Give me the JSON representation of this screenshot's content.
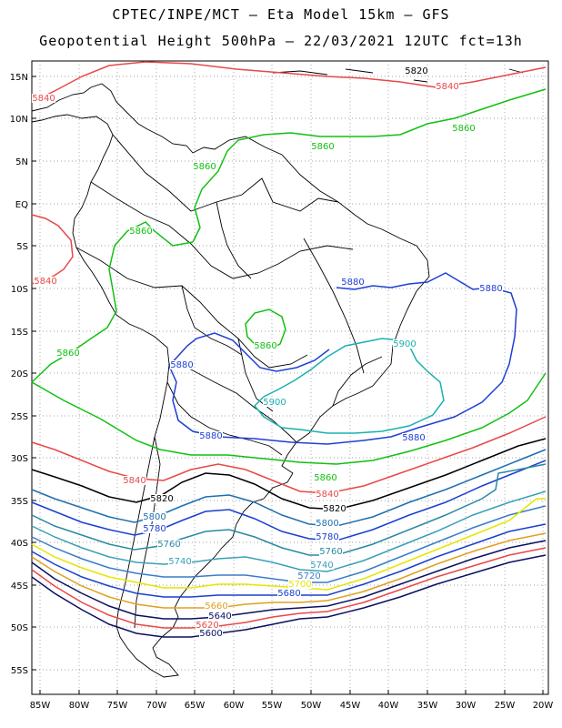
{
  "header": {
    "line1": "CPTEC/INPE/MCT –  Eta Model 15km – GFS",
    "line2": "Geopotential Height 500hPa – 22/03/2021 12UTC fct=13h"
  },
  "axes": {
    "lat_labels": [
      "15N",
      "10N",
      "5N",
      "EQ",
      "5S",
      "10S",
      "15S",
      "20S",
      "25S",
      "30S",
      "35S",
      "40S",
      "45S",
      "50S",
      "55S"
    ],
    "lon_labels": [
      "85W",
      "80W",
      "75W",
      "70W",
      "65W",
      "60W",
      "55W",
      "50W",
      "45W",
      "40W",
      "35W",
      "30W",
      "25W",
      "20W"
    ]
  },
  "contours": [
    {
      "value": "5900",
      "color": "#1ab0b0"
    },
    {
      "value": "5880",
      "color": "#1f3fd6"
    },
    {
      "value": "5860",
      "color": "#11c011"
    },
    {
      "value": "5840",
      "color": "#e84848"
    },
    {
      "value": "5820",
      "color": "#000000"
    },
    {
      "value": "5800",
      "color": "#1e6fb0"
    },
    {
      "value": "5780",
      "color": "#1a3fd0"
    },
    {
      "value": "5760",
      "color": "#2a8aa0"
    },
    {
      "value": "5740",
      "color": "#3aa0b8"
    },
    {
      "value": "5720",
      "color": "#3a7cc8"
    },
    {
      "value": "5700",
      "color": "#e6e600"
    },
    {
      "value": "5680",
      "color": "#1a3fd0"
    },
    {
      "value": "5660",
      "color": "#e0a020"
    },
    {
      "value": "5640",
      "color": "#0a1060"
    },
    {
      "value": "5620",
      "color": "#e84848"
    },
    {
      "value": "5600",
      "color": "#0a1060"
    }
  ],
  "labels": [
    {
      "text": "5820",
      "color": "#000000"
    },
    {
      "text": "5840",
      "color": "#e84848"
    },
    {
      "text": "5840",
      "color": "#e84848"
    },
    {
      "text": "5860",
      "color": "#11c011"
    },
    {
      "text": "5860",
      "color": "#11c011"
    },
    {
      "text": "5860",
      "color": "#11c011"
    },
    {
      "text": "5860",
      "color": "#11c011"
    },
    {
      "text": "5840",
      "color": "#e84848"
    },
    {
      "text": "5880",
      "color": "#1f3fd6"
    },
    {
      "text": "5880",
      "color": "#1f3fd6"
    },
    {
      "text": "5860",
      "color": "#11c011"
    },
    {
      "text": "5860",
      "color": "#11c011"
    },
    {
      "text": "5900",
      "color": "#1ab0b0"
    },
    {
      "text": "5880",
      "color": "#1f3fd6"
    },
    {
      "text": "5900",
      "color": "#1ab0b0"
    },
    {
      "text": "5880",
      "color": "#1f3fd6"
    },
    {
      "text": "5880",
      "color": "#1f3fd6"
    },
    {
      "text": "5840",
      "color": "#e84848"
    },
    {
      "text": "5860",
      "color": "#11c011"
    },
    {
      "text": "5840",
      "color": "#e84848"
    },
    {
      "text": "5820",
      "color": "#000000"
    },
    {
      "text": "5820",
      "color": "#000000"
    },
    {
      "text": "5800",
      "color": "#1e6fb0"
    },
    {
      "text": "5800",
      "color": "#1e6fb0"
    },
    {
      "text": "5780",
      "color": "#1a3fd0"
    },
    {
      "text": "5780",
      "color": "#1a3fd0"
    },
    {
      "text": "5760",
      "color": "#2a8aa0"
    },
    {
      "text": "5760",
      "color": "#2a8aa0"
    },
    {
      "text": "5740",
      "color": "#3aa0b8"
    },
    {
      "text": "5740",
      "color": "#3aa0b8"
    },
    {
      "text": "5720",
      "color": "#3a7cc8"
    },
    {
      "text": "5700",
      "color": "#e6e600"
    },
    {
      "text": "5680",
      "color": "#1a3fd0"
    },
    {
      "text": "5660",
      "color": "#e0a020"
    },
    {
      "text": "5640",
      "color": "#0a1060"
    },
    {
      "text": "5620",
      "color": "#e84848"
    },
    {
      "text": "5600",
      "color": "#0a1060"
    }
  ]
}
